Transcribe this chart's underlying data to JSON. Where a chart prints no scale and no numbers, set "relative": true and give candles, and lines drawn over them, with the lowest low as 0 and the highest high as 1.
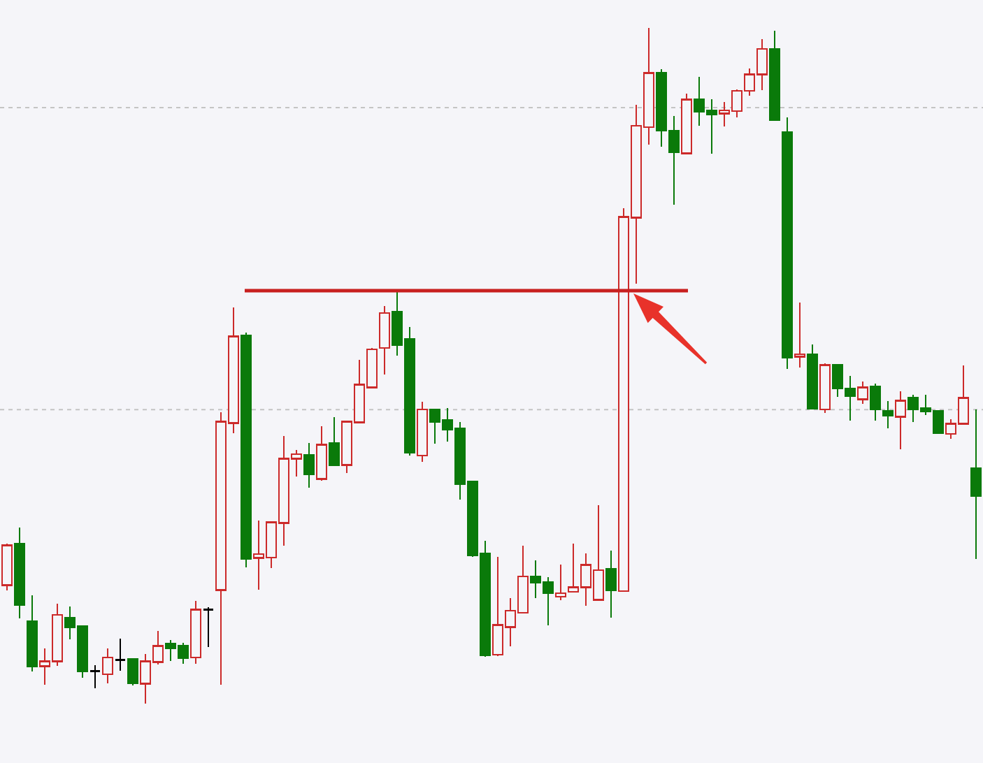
{
  "chart_data": {
    "type": "candlestick",
    "relative": true,
    "tick_labels": false,
    "categories": [
      null,
      null,
      null,
      null,
      null,
      null,
      null,
      null,
      null,
      null,
      null,
      null,
      null,
      null,
      null,
      null,
      null,
      null,
      null,
      null,
      null,
      null,
      null,
      null,
      null,
      null,
      null,
      null,
      null,
      null,
      null,
      null,
      null,
      null,
      null,
      null,
      null,
      null,
      null,
      null,
      null,
      null,
      null,
      null,
      null,
      null,
      null,
      null,
      null,
      null,
      null,
      null,
      null,
      null,
      null,
      null,
      null,
      null,
      null,
      null,
      null,
      null,
      null,
      null,
      null,
      null,
      null,
      null,
      null,
      null,
      null,
      null,
      null,
      null,
      null,
      null,
      null,
      null
    ],
    "ohlc": [
      [
        0.175,
        0.236,
        0.167,
        0.234
      ],
      [
        0.236,
        0.26,
        0.126,
        0.146
      ],
      [
        0.121,
        0.16,
        0.047,
        0.055
      ],
      [
        0.055,
        0.081,
        0.028,
        0.062
      ],
      [
        0.062,
        0.148,
        0.055,
        0.131
      ],
      [
        0.127,
        0.143,
        0.095,
        0.113
      ],
      [
        0.114,
        0.114,
        0.038,
        0.048
      ],
      [
        0.048,
        0.056,
        0.022,
        0.048
      ],
      [
        0.043,
        0.081,
        0.03,
        0.068
      ],
      [
        0.064,
        0.096,
        0.048,
        0.064
      ],
      [
        0.065,
        0.065,
        0.026,
        0.03
      ],
      [
        0.029,
        0.073,
        0,
        0.062
      ],
      [
        0.061,
        0.107,
        0.058,
        0.085
      ],
      [
        0.088,
        0.094,
        0.063,
        0.082
      ],
      [
        0.085,
        0.09,
        0.059,
        0.067
      ],
      [
        0.068,
        0.152,
        0.059,
        0.139
      ],
      [
        0.139,
        0.142,
        0.083,
        0.139
      ],
      [
        0.168,
        0.431,
        0.028,
        0.417
      ],
      [
        0.415,
        0.586,
        0.4,
        0.543
      ],
      [
        0.545,
        0.549,
        0.201,
        0.214
      ],
      [
        0.215,
        0.271,
        0.168,
        0.221
      ],
      [
        0.216,
        0.27,
        0.2,
        0.268
      ],
      [
        0.267,
        0.396,
        0.233,
        0.362
      ],
      [
        0.362,
        0.375,
        0.336,
        0.369
      ],
      [
        0.368,
        0.385,
        0.319,
        0.339
      ],
      [
        0.332,
        0.41,
        0.33,
        0.383
      ],
      [
        0.385,
        0.424,
        0.353,
        0.353
      ],
      [
        0.353,
        0.417,
        0.341,
        0.417
      ],
      [
        0.416,
        0.509,
        0.416,
        0.472
      ],
      [
        0.468,
        0.526,
        0.468,
        0.524
      ],
      [
        0.526,
        0.588,
        0.487,
        0.578
      ],
      [
        0.58,
        0.61,
        0.515,
        0.531
      ],
      [
        0.539,
        0.557,
        0.367,
        0.371
      ],
      [
        0.367,
        0.447,
        0.358,
        0.435
      ],
      [
        0.435,
        0.435,
        0.384,
        0.417
      ],
      [
        0.419,
        0.437,
        0.388,
        0.405
      ],
      [
        0.407,
        0.416,
        0.302,
        0.325
      ],
      [
        0.328,
        0.328,
        0.217,
        0.219
      ],
      [
        0.222,
        0.241,
        0.069,
        0.071
      ],
      [
        0.072,
        0.217,
        0.07,
        0.116
      ],
      [
        0.113,
        0.156,
        0.084,
        0.137
      ],
      [
        0.134,
        0.233,
        0.134,
        0.188
      ],
      [
        0.188,
        0.212,
        0.156,
        0.179
      ],
      [
        0.179,
        0.187,
        0.115,
        0.163
      ],
      [
        0.158,
        0.205,
        0.153,
        0.163
      ],
      [
        0.165,
        0.237,
        0.165,
        0.172
      ],
      [
        0.172,
        0.222,
        0.144,
        0.205
      ],
      [
        0.153,
        0.293,
        0.153,
        0.197
      ],
      [
        0.199,
        0.226,
        0.127,
        0.167
      ],
      [
        0.166,
        0.733,
        0.166,
        0.72
      ],
      [
        0.719,
        0.886,
        0.621,
        0.855
      ],
      [
        0.853,
        1,
        0.827,
        0.933
      ],
      [
        0.933,
        0.939,
        0.824,
        0.848
      ],
      [
        0.848,
        0.87,
        0.738,
        0.816
      ],
      [
        0.814,
        0.903,
        0.814,
        0.894
      ],
      [
        0.894,
        0.928,
        0.855,
        0.876
      ],
      [
        0.878,
        0.894,
        0.814,
        0.872
      ],
      [
        0.873,
        0.89,
        0.854,
        0.878
      ],
      [
        0.877,
        0.909,
        0.868,
        0.907
      ],
      [
        0.907,
        0.94,
        0.9,
        0.931
      ],
      [
        0.931,
        0.983,
        0.908,
        0.969
      ],
      [
        0.969,
        0.996,
        0.864,
        0.864
      ],
      [
        0.846,
        0.868,
        0.495,
        0.512
      ],
      [
        0.513,
        0.593,
        0.497,
        0.517
      ],
      [
        0.517,
        0.531,
        0.436,
        0.436
      ],
      [
        0.435,
        0.503,
        0.43,
        0.501
      ],
      [
        0.501,
        0.501,
        0.454,
        0.466
      ],
      [
        0.466,
        0.485,
        0.419,
        0.455
      ],
      [
        0.45,
        0.476,
        0.443,
        0.468
      ],
      [
        0.469,
        0.473,
        0.419,
        0.435
      ],
      [
        0.433,
        0.448,
        0.407,
        0.426
      ],
      [
        0.424,
        0.462,
        0.376,
        0.448
      ],
      [
        0.452,
        0.457,
        0.417,
        0.435
      ],
      [
        0.437,
        0.457,
        0.427,
        0.432
      ],
      [
        0.433,
        0.433,
        0.399,
        0.4
      ],
      [
        0.399,
        0.421,
        0.392,
        0.414
      ],
      [
        0.414,
        0.5,
        0.414,
        0.452
      ],
      [
        0.348,
        0.435,
        0.214,
        0.307
      ]
    ],
    "colors": [
      "#cc2a2a",
      "#0a7a0a",
      "#0a7a0a",
      "#cc2a2a",
      "#cc2a2a",
      "#0a7a0a",
      "#0a7a0a",
      "#000000",
      "#cc2a2a",
      "#000000",
      "#0a7a0a",
      "#cc2a2a",
      "#cc2a2a",
      "#0a7a0a",
      "#0a7a0a",
      "#cc2a2a",
      "#000000",
      "#cc2a2a",
      "#cc2a2a",
      "#0a7a0a",
      "#cc2a2a",
      "#cc2a2a",
      "#cc2a2a",
      "#cc2a2a",
      "#0a7a0a",
      "#cc2a2a",
      "#0a7a0a",
      "#cc2a2a",
      "#cc2a2a",
      "#cc2a2a",
      "#cc2a2a",
      "#0a7a0a",
      "#0a7a0a",
      "#cc2a2a",
      "#0a7a0a",
      "#0a7a0a",
      "#0a7a0a",
      "#0a7a0a",
      "#0a7a0a",
      "#cc2a2a",
      "#cc2a2a",
      "#cc2a2a",
      "#0a7a0a",
      "#0a7a0a",
      "#cc2a2a",
      "#cc2a2a",
      "#cc2a2a",
      "#cc2a2a",
      "#0a7a0a",
      "#cc2a2a",
      "#cc2a2a",
      "#cc2a2a",
      "#0a7a0a",
      "#0a7a0a",
      "#cc2a2a",
      "#0a7a0a",
      "#0a7a0a",
      "#cc2a2a",
      "#cc2a2a",
      "#cc2a2a",
      "#cc2a2a",
      "#0a7a0a",
      "#0a7a0a",
      "#cc2a2a",
      "#0a7a0a",
      "#cc2a2a",
      "#0a7a0a",
      "#0a7a0a",
      "#cc2a2a",
      "#0a7a0a",
      "#0a7a0a",
      "#cc2a2a",
      "#0a7a0a",
      "#0a7a0a",
      "#0a7a0a",
      "#cc2a2a",
      "#cc2a2a",
      "#0a7a0a"
    ],
    "ref_lines": [
      {
        "axis": "y",
        "value": 0.882,
        "color": "#c4c4c4",
        "line_style": "dashed"
      },
      {
        "axis": "y",
        "value": 0.435,
        "color": "#c4c4c4",
        "line_style": "dashed"
      },
      {
        "axis": "y",
        "value": 0.611,
        "color": "#c82020",
        "line_style": "solid"
      }
    ]
  }
}
